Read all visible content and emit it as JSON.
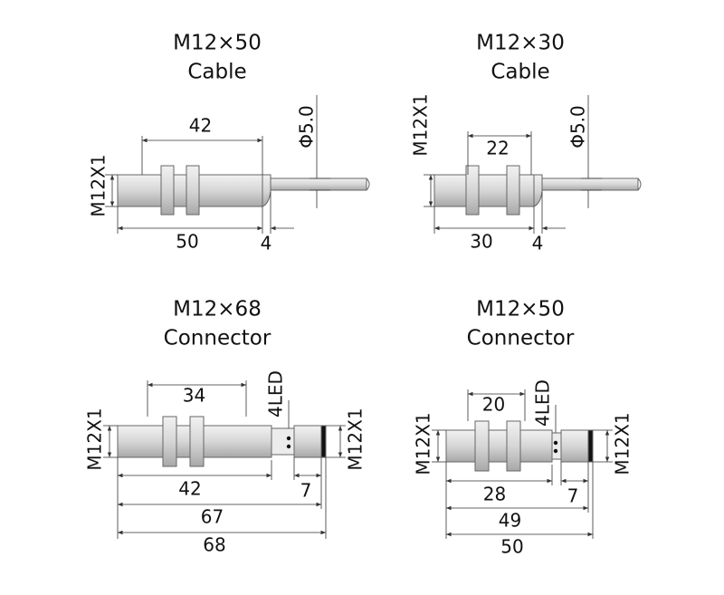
{
  "drawings": [
    {
      "title": "M12×50",
      "subtitle": "Cable",
      "thread_label": "M12X1",
      "cable_diameter": "Φ5.0",
      "dimensions": [
        "42",
        "50",
        "4"
      ]
    },
    {
      "title": "M12×30",
      "subtitle": "Cable",
      "thread_label": "M12X1",
      "cable_diameter": "Φ5.0",
      "dimensions": [
        "22",
        "30",
        "4"
      ]
    },
    {
      "title": "M12×68",
      "subtitle": "Connector",
      "thread_labels": [
        "M12X1",
        "M12X1"
      ],
      "led_label": "4LED",
      "dimensions": [
        "34",
        "42",
        "7",
        "67",
        "68"
      ]
    },
    {
      "title": "M12×50",
      "subtitle": "Connector",
      "thread_labels": [
        "M12X1",
        "M12X1"
      ],
      "led_label": "4LED",
      "dimensions": [
        "20",
        "28",
        "7",
        "49",
        "50"
      ]
    }
  ]
}
